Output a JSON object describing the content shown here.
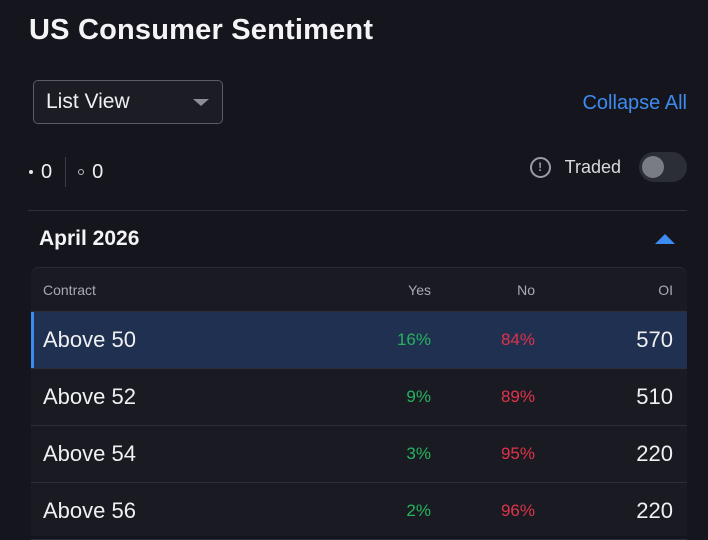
{
  "header": {
    "title": "US Consumer Sentiment"
  },
  "view_select": {
    "selected": "List View"
  },
  "collapse_all_label": "Collapse All",
  "counts": {
    "filled": "0",
    "outline": "0"
  },
  "traded": {
    "label": "Traded",
    "enabled": false
  },
  "section": {
    "title": "April 2026"
  },
  "table": {
    "headers": {
      "contract": "Contract",
      "yes": "Yes",
      "no": "No",
      "oi": "OI"
    },
    "rows": [
      {
        "contract": "Above 50",
        "yes": "16%",
        "no": "84%",
        "oi": "570",
        "selected": true
      },
      {
        "contract": "Above 52",
        "yes": "9%",
        "no": "89%",
        "oi": "510",
        "selected": false
      },
      {
        "contract": "Above 54",
        "yes": "3%",
        "no": "95%",
        "oi": "220",
        "selected": false
      },
      {
        "contract": "Above 56",
        "yes": "2%",
        "no": "96%",
        "oi": "220",
        "selected": false
      }
    ]
  },
  "colors": {
    "accent": "#3d8bf0",
    "yes": "#26b35e",
    "no": "#e0334a",
    "selected_row": "#1f3050"
  }
}
